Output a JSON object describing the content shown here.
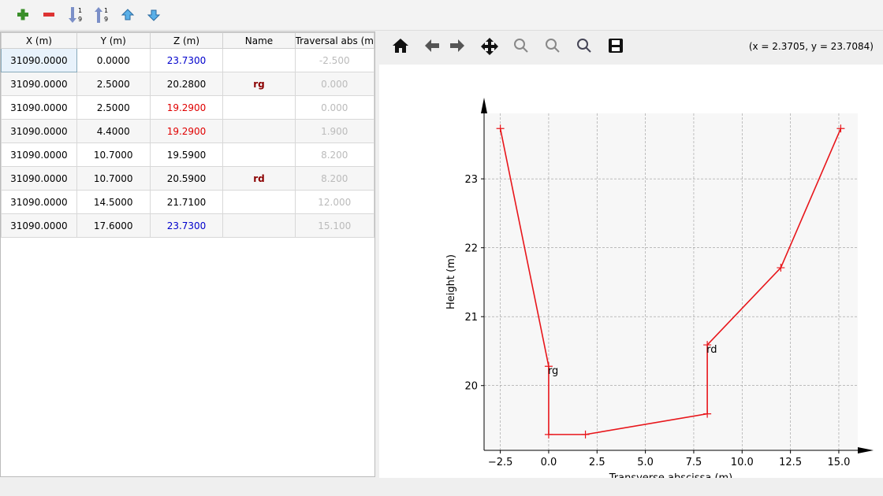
{
  "table": {
    "columns": [
      "X (m)",
      "Y (m)",
      "Z (m)",
      "Name",
      "Traversal abs (m"
    ],
    "rows": [
      [
        "31090.0000",
        "0.0000",
        "23.7300",
        "",
        "-2.500"
      ],
      [
        "31090.0000",
        "2.5000",
        "20.2800",
        "rg",
        "0.000"
      ],
      [
        "31090.0000",
        "2.5000",
        "19.2900",
        "",
        "0.000"
      ],
      [
        "31090.0000",
        "4.4000",
        "19.2900",
        "",
        "1.900"
      ],
      [
        "31090.0000",
        "10.7000",
        "19.5900",
        "",
        "8.200"
      ],
      [
        "31090.0000",
        "10.7000",
        "20.5900",
        "rd",
        "8.200"
      ],
      [
        "31090.0000",
        "14.5000",
        "21.7100",
        "",
        "12.000"
      ],
      [
        "31090.0000",
        "17.6000",
        "23.7300",
        "",
        "15.100"
      ]
    ],
    "z_colors": [
      "#0000cc",
      "#000000",
      "#e00000",
      "#e00000",
      "#000000",
      "#000000",
      "#000000",
      "#0000cc"
    ]
  },
  "coordinates": "(x = 2.3705,   y = 23.7084)",
  "chart_data": {
    "type": "line",
    "xlabel": "Transverse abscissa (m)",
    "ylabel": "Height (m)",
    "x": [
      -2.5,
      0,
      0,
      1.9,
      8.2,
      8.2,
      12,
      15.1
    ],
    "series": [
      {
        "color": "#e8161b",
        "values": [
          23.73,
          20.28,
          19.29,
          19.29,
          19.59,
          20.59,
          21.71,
          23.73
        ]
      }
    ],
    "annotations": [
      {
        "text": "rg",
        "x": 0,
        "y": 20.28
      },
      {
        "text": "rd",
        "x": 8.2,
        "y": 20.59
      }
    ],
    "xlim": [
      -3.34,
      15.98
    ],
    "ylim": [
      19.06,
      23.95
    ],
    "xticks": [
      {
        "value": -2.5,
        "label": "−2.5"
      },
      {
        "value": 0,
        "label": "0.0"
      },
      2.5,
      {
        "value": 5,
        "label": "5.0"
      },
      7.5,
      {
        "value": 10,
        "label": "10.0"
      },
      12.5,
      {
        "value": 15,
        "label": "15.0"
      }
    ],
    "yticks": [
      20,
      21,
      22,
      23
    ],
    "grid": true
  }
}
